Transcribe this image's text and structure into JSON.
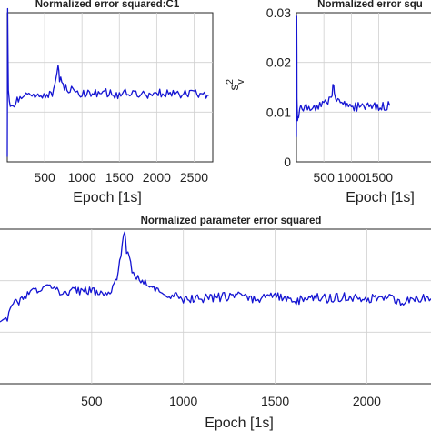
{
  "chart_data": [
    {
      "type": "line",
      "title": "Normalized error squared:C1",
      "xlabel": "Epoch [1s]",
      "ylabel": "",
      "xlim": [
        0,
        2750
      ],
      "ylim": [
        0,
        0.03
      ],
      "xticks": [
        500,
        1000,
        1500,
        2000,
        2500
      ],
      "grid": true,
      "series": [
        {
          "color": "#1414d2",
          "x": [
            0,
            5,
            15,
            40,
            80,
            150,
            250,
            350,
            450,
            550,
            620,
            650,
            680,
            700,
            730,
            800,
            900,
            1000,
            1100,
            1200,
            1300,
            1400,
            1500,
            1600,
            1700,
            1800,
            1900,
            2000,
            2100,
            2200,
            2300,
            2400,
            2500,
            2600,
            2700
          ],
          "y": [
            0.001,
            0.03,
            0.014,
            0.011,
            0.0115,
            0.0125,
            0.013,
            0.0135,
            0.0132,
            0.0135,
            0.014,
            0.0165,
            0.02,
            0.017,
            0.0155,
            0.0145,
            0.0142,
            0.0138,
            0.0135,
            0.0138,
            0.014,
            0.0137,
            0.0135,
            0.0138,
            0.014,
            0.0138,
            0.0135,
            0.0137,
            0.0138,
            0.0136,
            0.0135,
            0.0137,
            0.0136,
            0.0135,
            0.0134
          ]
        }
      ]
    },
    {
      "type": "line",
      "title": "Normalized error squ",
      "xlabel": "Epoch [1s]",
      "ylabel": "s_v^2",
      "xlim": [
        0,
        2750
      ],
      "ylim": [
        0,
        0.03
      ],
      "yticks": [
        0,
        0.01,
        0.02,
        0.03
      ],
      "ytick_labels": [
        "0",
        "0.01",
        "0.02",
        "0.03"
      ],
      "xticks": [
        500,
        1000,
        1500
      ],
      "grid": true,
      "series": [
        {
          "color": "#1414d2",
          "x": [
            0,
            5,
            10,
            20,
            40,
            80,
            150,
            250,
            350,
            450,
            550,
            620,
            650,
            680,
            700,
            730,
            800,
            900,
            1000,
            1100,
            1200,
            1300,
            1400,
            1500,
            1600,
            1700
          ],
          "y": [
            0.005,
            0.03,
            0.012,
            0.009,
            0.0095,
            0.0105,
            0.011,
            0.0112,
            0.011,
            0.0115,
            0.0118,
            0.0125,
            0.014,
            0.0155,
            0.013,
            0.0125,
            0.012,
            0.0115,
            0.0112,
            0.011,
            0.0112,
            0.0114,
            0.0112,
            0.011,
            0.0112,
            0.0113
          ]
        }
      ]
    },
    {
      "type": "line",
      "title": "Normalized parameter error squared",
      "xlabel": "Epoch [1s]",
      "ylabel": "",
      "xlim": [
        0,
        2350
      ],
      "ylim": [
        0,
        0.03
      ],
      "xticks": [
        500,
        1000,
        1500,
        2000
      ],
      "grid": true,
      "series": [
        {
          "color": "#1414d2",
          "x": [
            0,
            40,
            80,
            150,
            250,
            350,
            450,
            550,
            600,
            630,
            660,
            680,
            690,
            720,
            760,
            800,
            900,
            1000,
            1100,
            1200,
            1300,
            1400,
            1500,
            1600,
            1700,
            1800,
            1900,
            2000,
            2100,
            2200,
            2300,
            2350
          ],
          "y": [
            0.012,
            0.013,
            0.0155,
            0.0175,
            0.0185,
            0.0175,
            0.0183,
            0.0178,
            0.018,
            0.0195,
            0.025,
            0.0295,
            0.026,
            0.022,
            0.0205,
            0.019,
            0.0175,
            0.0165,
            0.0165,
            0.0168,
            0.017,
            0.0165,
            0.0172,
            0.016,
            0.0168,
            0.0165,
            0.017,
            0.0163,
            0.0168,
            0.016,
            0.0168,
            0.0165
          ]
        }
      ]
    }
  ]
}
